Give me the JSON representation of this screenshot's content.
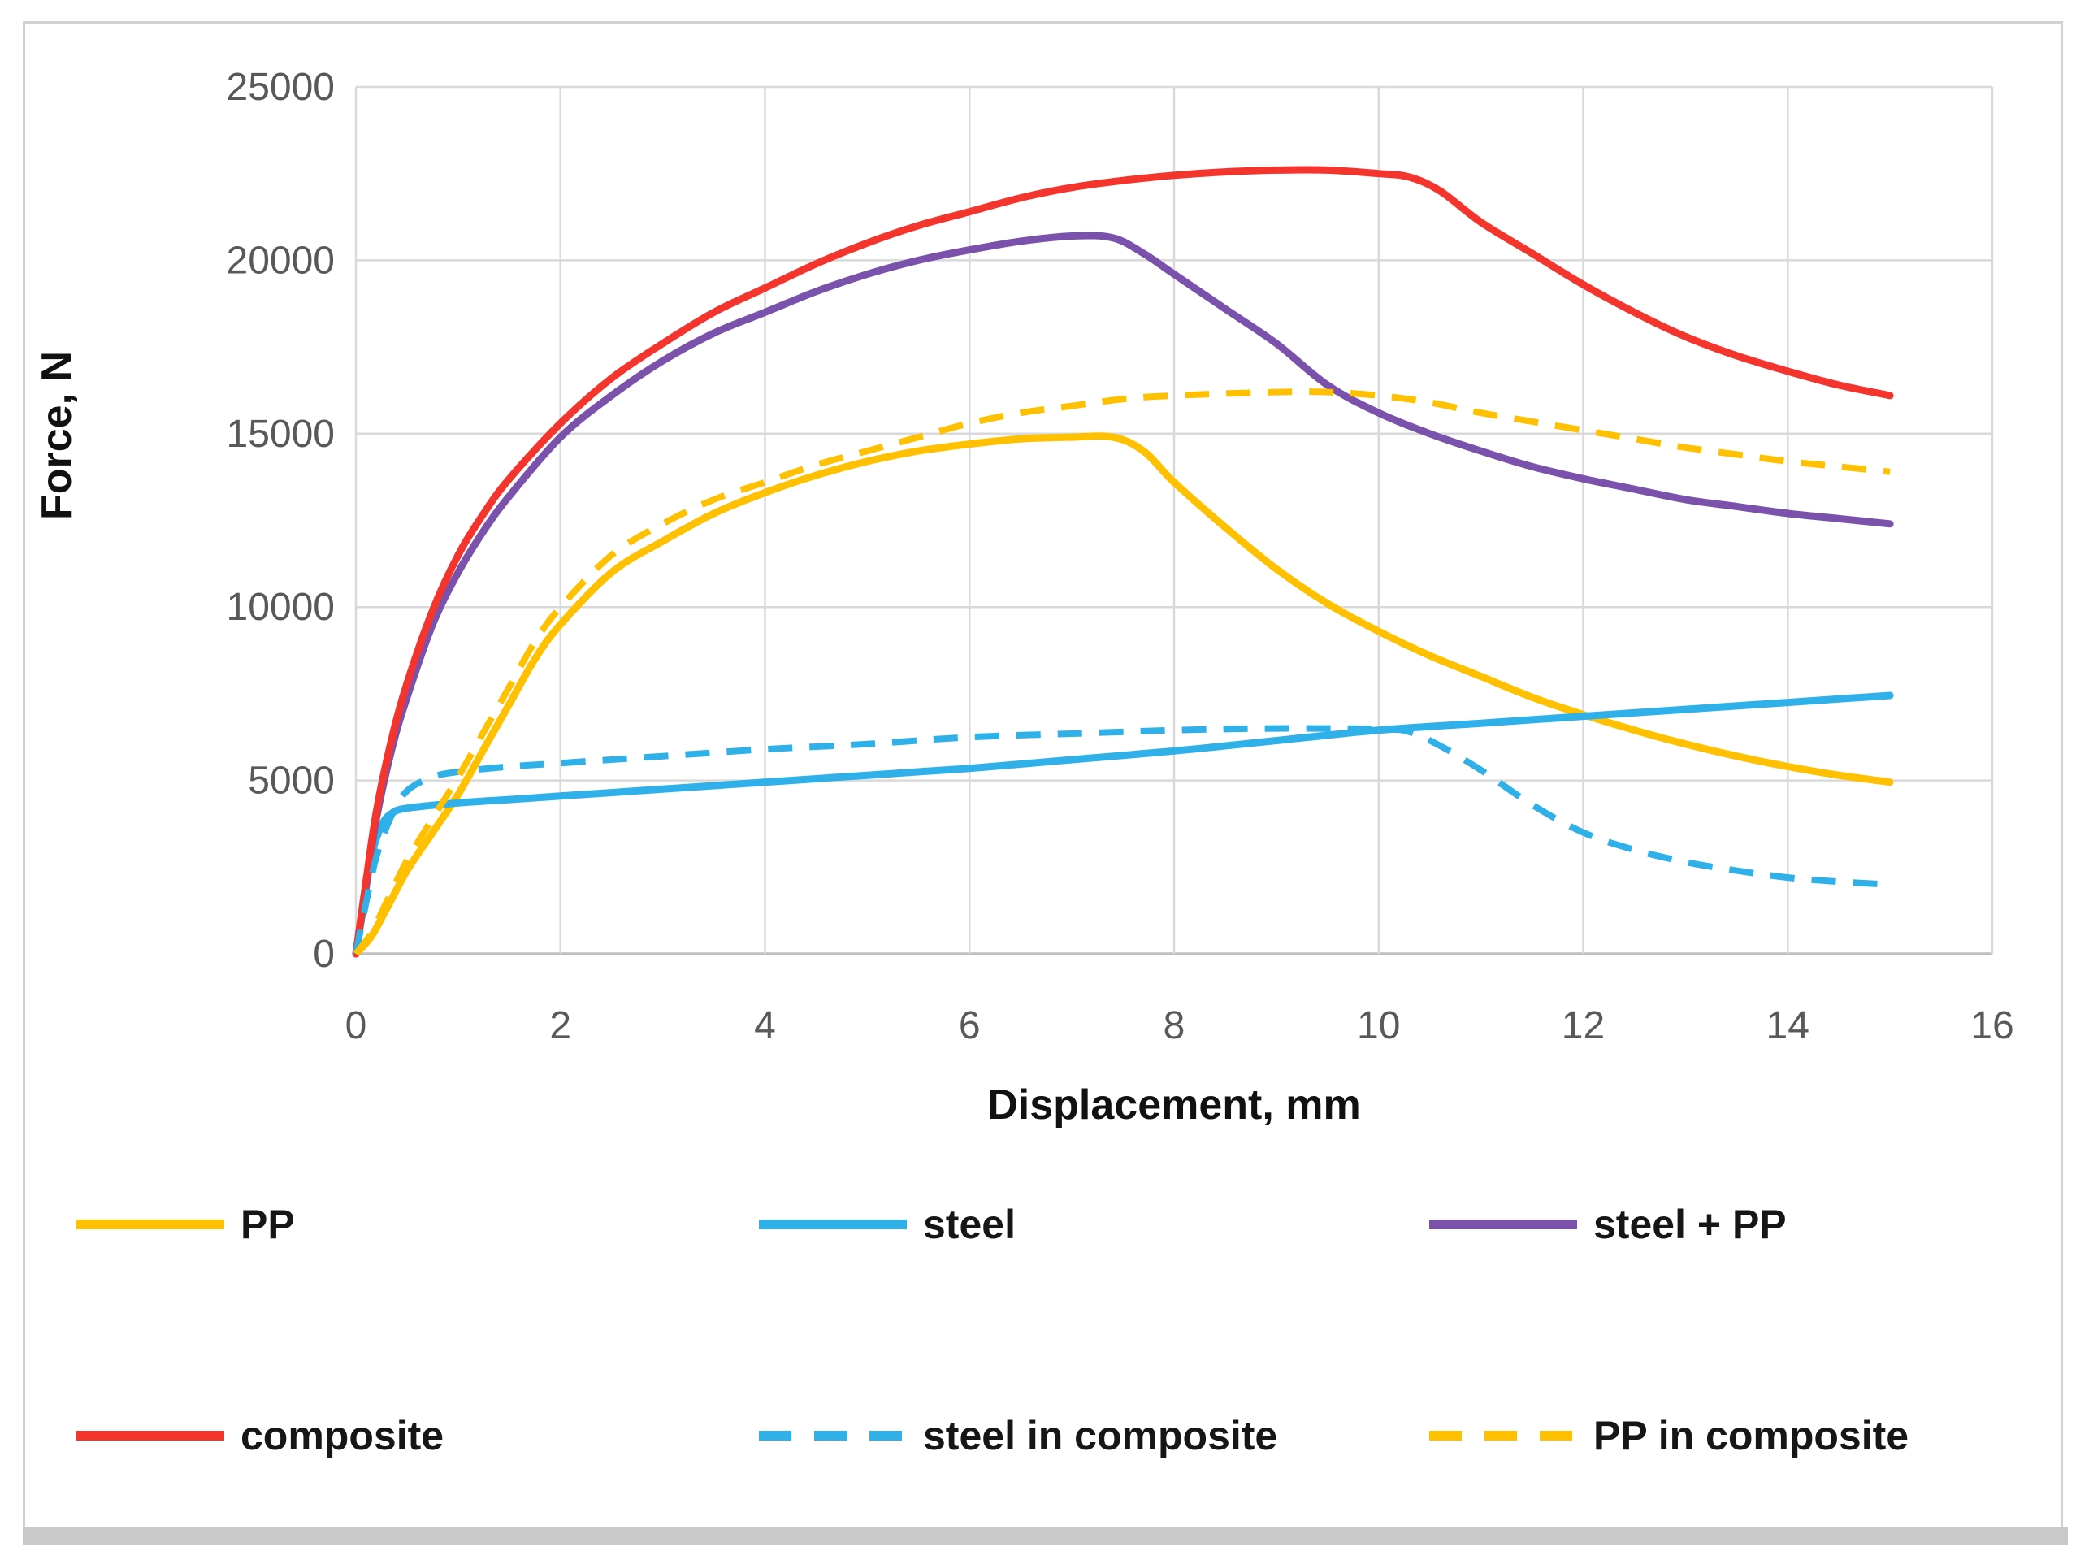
{
  "chart_data": {
    "type": "line",
    "title": "",
    "xlabel": "Displacement, mm",
    "ylabel": "Force, N",
    "xlim": [
      0,
      16
    ],
    "ylim": [
      0,
      25000
    ],
    "xticks": [
      0,
      2,
      4,
      6,
      8,
      10,
      12,
      14,
      16
    ],
    "yticks": [
      0,
      5000,
      10000,
      15000,
      20000,
      25000
    ],
    "grid": true,
    "legend_position": "bottom",
    "colors": {
      "gridline": "#D9D9D9",
      "axis_line": "#BFBFBF",
      "tick_label": "#595959",
      "axis_title": "#111111",
      "frame_border": "#D2D0D0"
    },
    "series": [
      {
        "name": "PP",
        "color": "#FFC000",
        "style": "solid",
        "points": [
          [
            0,
            0
          ],
          [
            0.15,
            500
          ],
          [
            0.3,
            1300
          ],
          [
            0.5,
            2400
          ],
          [
            0.75,
            3500
          ],
          [
            1,
            4600
          ],
          [
            1.25,
            5900
          ],
          [
            1.5,
            7200
          ],
          [
            1.75,
            8500
          ],
          [
            2,
            9500
          ],
          [
            2.5,
            11000
          ],
          [
            3,
            11900
          ],
          [
            3.5,
            12700
          ],
          [
            4,
            13300
          ],
          [
            4.5,
            13800
          ],
          [
            5,
            14200
          ],
          [
            5.5,
            14500
          ],
          [
            6,
            14700
          ],
          [
            6.5,
            14850
          ],
          [
            7,
            14900
          ],
          [
            7.4,
            14900
          ],
          [
            7.7,
            14500
          ],
          [
            8,
            13600
          ],
          [
            8.5,
            12300
          ],
          [
            9,
            11100
          ],
          [
            9.5,
            10100
          ],
          [
            10,
            9300
          ],
          [
            10.5,
            8600
          ],
          [
            11,
            8000
          ],
          [
            11.5,
            7400
          ],
          [
            12,
            6900
          ],
          [
            12.5,
            6450
          ],
          [
            13,
            6050
          ],
          [
            13.5,
            5700
          ],
          [
            14,
            5400
          ],
          [
            14.5,
            5150
          ],
          [
            15,
            4950
          ]
        ]
      },
      {
        "name": "steel",
        "color": "#2FB0E8",
        "style": "solid",
        "points": [
          [
            0,
            0
          ],
          [
            0.08,
            1500
          ],
          [
            0.15,
            2800
          ],
          [
            0.25,
            3700
          ],
          [
            0.35,
            4050
          ],
          [
            0.5,
            4200
          ],
          [
            1,
            4350
          ],
          [
            1.5,
            4450
          ],
          [
            2,
            4550
          ],
          [
            3,
            4750
          ],
          [
            4,
            4950
          ],
          [
            5,
            5150
          ],
          [
            6,
            5350
          ],
          [
            7,
            5600
          ],
          [
            8,
            5850
          ],
          [
            9,
            6150
          ],
          [
            10,
            6450
          ],
          [
            11,
            6650
          ],
          [
            12,
            6850
          ],
          [
            13,
            7050
          ],
          [
            14,
            7250
          ],
          [
            15,
            7450
          ]
        ]
      },
      {
        "name": "steel + PP",
        "color": "#7B52AB",
        "style": "solid",
        "points": [
          [
            0,
            0
          ],
          [
            0.1,
            2000
          ],
          [
            0.2,
            3900
          ],
          [
            0.35,
            5900
          ],
          [
            0.5,
            7400
          ],
          [
            0.75,
            9500
          ],
          [
            1,
            11000
          ],
          [
            1.25,
            12200
          ],
          [
            1.5,
            13200
          ],
          [
            2,
            14900
          ],
          [
            2.5,
            16100
          ],
          [
            3,
            17100
          ],
          [
            3.5,
            17900
          ],
          [
            4,
            18500
          ],
          [
            4.5,
            19100
          ],
          [
            5,
            19600
          ],
          [
            5.5,
            20000
          ],
          [
            6,
            20300
          ],
          [
            6.5,
            20550
          ],
          [
            7,
            20700
          ],
          [
            7.4,
            20650
          ],
          [
            7.7,
            20200
          ],
          [
            8,
            19600
          ],
          [
            8.5,
            18600
          ],
          [
            9,
            17600
          ],
          [
            9.5,
            16400
          ],
          [
            10,
            15600
          ],
          [
            10.5,
            15000
          ],
          [
            11,
            14500
          ],
          [
            11.5,
            14050
          ],
          [
            12,
            13700
          ],
          [
            12.5,
            13400
          ],
          [
            13,
            13100
          ],
          [
            13.5,
            12900
          ],
          [
            14,
            12700
          ],
          [
            14.5,
            12550
          ],
          [
            15,
            12400
          ]
        ]
      },
      {
        "name": "composite",
        "color": "#F3352E",
        "style": "solid",
        "points": [
          [
            0,
            0
          ],
          [
            0.1,
            2100
          ],
          [
            0.2,
            4100
          ],
          [
            0.35,
            6200
          ],
          [
            0.5,
            7800
          ],
          [
            0.75,
            9900
          ],
          [
            1,
            11500
          ],
          [
            1.25,
            12700
          ],
          [
            1.5,
            13700
          ],
          [
            2,
            15300
          ],
          [
            2.5,
            16600
          ],
          [
            3,
            17600
          ],
          [
            3.5,
            18500
          ],
          [
            4,
            19200
          ],
          [
            4.5,
            19900
          ],
          [
            5,
            20500
          ],
          [
            5.5,
            21000
          ],
          [
            6,
            21400
          ],
          [
            6.5,
            21800
          ],
          [
            7,
            22100
          ],
          [
            7.5,
            22300
          ],
          [
            8,
            22450
          ],
          [
            8.5,
            22550
          ],
          [
            9,
            22600
          ],
          [
            9.5,
            22600
          ],
          [
            10,
            22500
          ],
          [
            10.3,
            22400
          ],
          [
            10.6,
            22000
          ],
          [
            11,
            21100
          ],
          [
            11.5,
            20200
          ],
          [
            12,
            19300
          ],
          [
            12.5,
            18500
          ],
          [
            13,
            17800
          ],
          [
            13.5,
            17250
          ],
          [
            14,
            16800
          ],
          [
            14.5,
            16400
          ],
          [
            15,
            16100
          ]
        ]
      },
      {
        "name": "steel in composite",
        "color": "#2FB0E8",
        "style": "dashed",
        "points": [
          [
            0,
            0
          ],
          [
            0.08,
            1200
          ],
          [
            0.2,
            2800
          ],
          [
            0.35,
            4000
          ],
          [
            0.5,
            4700
          ],
          [
            0.75,
            5100
          ],
          [
            1,
            5250
          ],
          [
            1.5,
            5400
          ],
          [
            2,
            5500
          ],
          [
            3,
            5700
          ],
          [
            4,
            5900
          ],
          [
            5,
            6050
          ],
          [
            6,
            6250
          ],
          [
            7,
            6350
          ],
          [
            8,
            6450
          ],
          [
            9,
            6500
          ],
          [
            10,
            6480
          ],
          [
            10.3,
            6400
          ],
          [
            10.6,
            6000
          ],
          [
            11,
            5300
          ],
          [
            11.5,
            4300
          ],
          [
            12,
            3500
          ],
          [
            12.5,
            3000
          ],
          [
            13,
            2650
          ],
          [
            13.5,
            2400
          ],
          [
            14,
            2200
          ],
          [
            14.5,
            2080
          ],
          [
            15,
            2000
          ]
        ]
      },
      {
        "name": "PP in composite",
        "color": "#FFC000",
        "style": "dashed",
        "points": [
          [
            0,
            0
          ],
          [
            0.15,
            600
          ],
          [
            0.3,
            1500
          ],
          [
            0.5,
            2700
          ],
          [
            0.75,
            3900
          ],
          [
            1,
            5100
          ],
          [
            1.25,
            6400
          ],
          [
            1.5,
            7700
          ],
          [
            1.75,
            9000
          ],
          [
            2,
            10000
          ],
          [
            2.5,
            11500
          ],
          [
            3,
            12400
          ],
          [
            3.5,
            13100
          ],
          [
            4,
            13600
          ],
          [
            4.5,
            14100
          ],
          [
            5,
            14500
          ],
          [
            5.5,
            14900
          ],
          [
            6,
            15300
          ],
          [
            6.5,
            15600
          ],
          [
            7,
            15800
          ],
          [
            7.5,
            16000
          ],
          [
            8,
            16100
          ],
          [
            9,
            16200
          ],
          [
            9.5,
            16200
          ],
          [
            10,
            16100
          ],
          [
            10.5,
            15900
          ],
          [
            11,
            15600
          ],
          [
            11.5,
            15350
          ],
          [
            12,
            15100
          ],
          [
            12.5,
            14850
          ],
          [
            13,
            14600
          ],
          [
            13.5,
            14400
          ],
          [
            14,
            14200
          ],
          [
            14.5,
            14050
          ],
          [
            15,
            13900
          ]
        ]
      }
    ],
    "legend_rows": [
      [
        0,
        1,
        2
      ],
      [
        3,
        4,
        5
      ]
    ]
  }
}
